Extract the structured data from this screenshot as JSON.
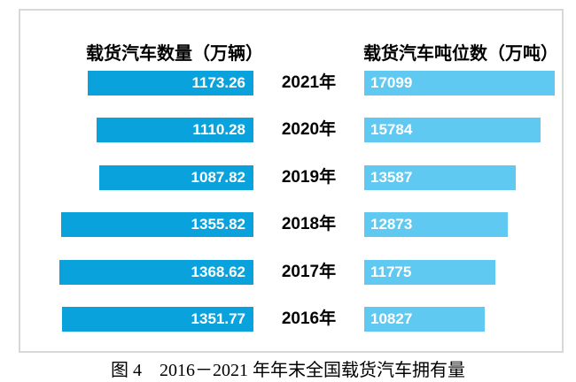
{
  "figure": {
    "caption": "图 4　2016－2021 年年末全国载货汽车拥有量"
  },
  "colors": {
    "left_bar": "#0aa2dc",
    "right_bar": "#5fc9f1",
    "frame_border": "#d8d8d8",
    "value_label": "#ffffff",
    "text": "#000000"
  },
  "chart_data": {
    "type": "bar",
    "variant": "bidirectional-horizontal-tornado",
    "title": "图 4　2016－2021 年年末全国载货汽车拥有量",
    "left_axis_title": "载货汽车数量（万辆）",
    "right_axis_title": "载货汽车吨位数（万吨）",
    "categories": [
      "2021年",
      "2020年",
      "2019年",
      "2018年",
      "2017年",
      "2016年"
    ],
    "series": [
      {
        "name": "载货汽车数量（万辆）",
        "side": "left",
        "color": "#0aa2dc",
        "values": [
          1173.26,
          1110.28,
          1087.82,
          1355.82,
          1368.62,
          1351.77
        ],
        "labels": [
          "1173.26",
          "1110.28",
          "1087.82",
          "1355.82",
          "1368.62",
          "1351.77"
        ]
      },
      {
        "name": "载货汽车吨位数（万吨）",
        "side": "right",
        "color": "#5fc9f1",
        "values": [
          17099,
          15784,
          13587,
          12873,
          11775,
          10827
        ],
        "labels": [
          "17099",
          "15784",
          "13587",
          "12873",
          "11775",
          "10827"
        ]
      }
    ],
    "value_labels_position": "inside-end",
    "grid": false,
    "legend": "none",
    "left_axis_range": [
      0,
      1400
    ],
    "right_axis_range": [
      0,
      17500
    ]
  }
}
